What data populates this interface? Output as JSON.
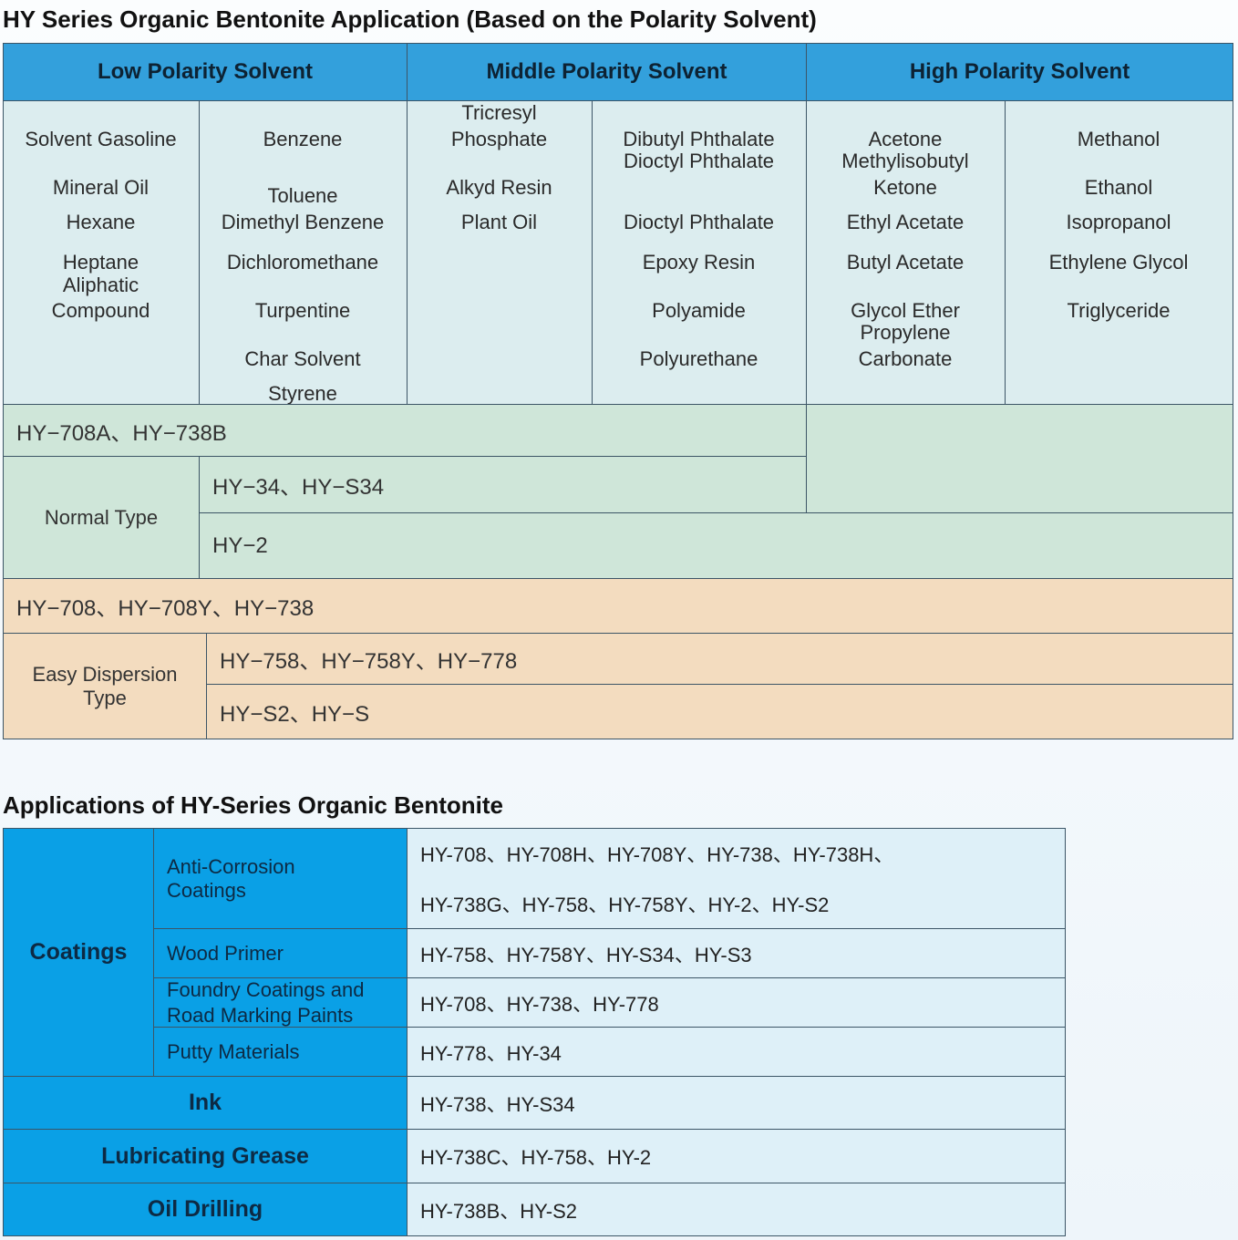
{
  "title1": "HY Series Organic Bentonite Application (Based on the Polarity Solvent)",
  "headers": [
    "Low Polarity Solvent",
    "Middle Polarity Solvent",
    "High Polarity Solvent"
  ],
  "solvent_columns": [
    [
      "Solvent Gasoline",
      "Mineral Oil",
      "Hexane",
      "Heptane",
      "Aliphatic",
      "Compound"
    ],
    [
      "Benzene",
      "Toluene",
      "Dimethyl Benzene",
      "Dichloromethane",
      "Turpentine",
      "Char Solvent",
      "Styrene"
    ],
    [
      "Tricresyl",
      "Phosphate",
      "Alkyd Resin",
      "Plant Oil"
    ],
    [
      "Dibutyl Phthalate",
      "Dioctyl Phthalate",
      "Dioctyl Phthalate",
      "Epoxy Resin",
      "Polyamide",
      "Polyurethane"
    ],
    [
      "Acetone",
      "Methylisobutyl",
      "Ketone",
      "Ethyl Acetate",
      "Butyl Acetate",
      "Glycol Ether",
      "Propylene",
      "Carbonate"
    ],
    [
      "Methanol",
      "Ethanol",
      "Isopropanol",
      "Ethylene Glycol",
      "Triglyceride"
    ]
  ],
  "normal": {
    "all_low_mid": "HY−708A、HY−738B",
    "type_label": "Normal Type",
    "low_mid": "HY−34、HY−S34",
    "all": "HY−2"
  },
  "easy": {
    "all": "HY−708、HY−708Y、HY−738",
    "type_label": "Easy Dispersion Type",
    "row1": "HY−758、HY−758Y、HY−778",
    "row2": "HY−S2、HY−S"
  },
  "title2": "Applications of HY-Series Organic Bentonite",
  "applications": {
    "coatings_label": "Coatings",
    "coatings": [
      {
        "name": "Anti-Corrosion Coatings",
        "grades": [
          "HY-708、HY-708H、HY-708Y、HY-738、HY-738H、",
          "HY-738G、HY-758、HY-758Y、HY-2、HY-S2"
        ]
      },
      {
        "name": "Wood Primer",
        "grades": [
          "HY-758、HY-758Y、HY-S34、HY-S3"
        ]
      },
      {
        "name": "Foundry Coatings and Road Marking Paints",
        "grades": [
          "HY-708、HY-738、HY-778"
        ]
      },
      {
        "name": "Putty Materials",
        "grades": [
          "HY-778、HY-34"
        ]
      }
    ],
    "others": [
      {
        "name": "Ink",
        "grades": "HY-738、HY-S34"
      },
      {
        "name": "Lubricating Grease",
        "grades": "HY-738C、HY-758、HY-2"
      },
      {
        "name": "Oil Drilling",
        "grades": "HY-738B、HY-S2"
      }
    ]
  },
  "colors": {
    "header_blue": "#33a0dc",
    "app_blue": "#0aa0e6",
    "normal_green": "#cfe6d9",
    "easy_tan": "#f3dcbf"
  }
}
